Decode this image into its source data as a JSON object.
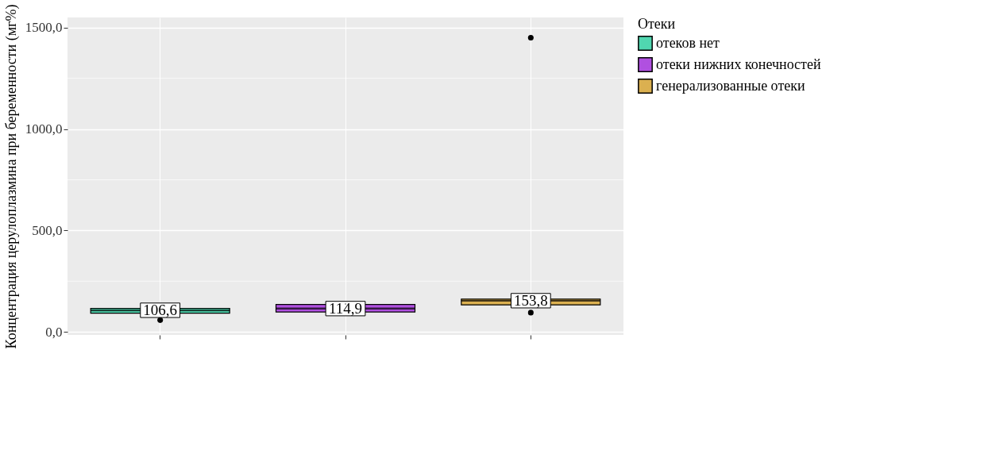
{
  "chart_data": {
    "type": "box",
    "ylabel": "Концентрация церулоплазмина при беременности (мг%)",
    "legend_title": "Отеки",
    "categories": [
      null,
      null,
      null
    ],
    "series": [
      {
        "name": "отеков нет",
        "color": "#50d7b0",
        "boxes": [
          {
            "low": 85,
            "q1": 92,
            "median": 106.6,
            "q3": 116,
            "high": 125,
            "outliers": [
              58
            ]
          },
          null,
          null
        ]
      },
      {
        "name": "отеки нижних конечностей",
        "color": "#b050e0",
        "boxes": [
          null,
          {
            "low": 90,
            "q1": 98,
            "median": 114.9,
            "q3": 135,
            "high": 140
          },
          null
        ]
      },
      {
        "name": "генерализованные отеки",
        "color": "#dbb050",
        "boxes": [
          null,
          null,
          {
            "low": 120,
            "q1": 133,
            "median": 153.8,
            "q3": 162,
            "high": 175,
            "outliers": [
              95,
              1450
            ]
          }
        ]
      }
    ],
    "value_labels": [
      "106,6",
      "114,9",
      "153,8"
    ],
    "ylim": [
      -15,
      1550
    ],
    "yticks": [
      {
        "value": 0,
        "label": "0,0"
      },
      {
        "value": 250,
        "label": null
      },
      {
        "value": 500,
        "label": "500,0"
      },
      {
        "value": 750,
        "label": null
      },
      {
        "value": 1000,
        "label": "1000,0"
      },
      {
        "value": 1250,
        "label": null
      },
      {
        "value": 1500,
        "label": "1500,0"
      }
    ],
    "grid": true,
    "legend": "right"
  }
}
